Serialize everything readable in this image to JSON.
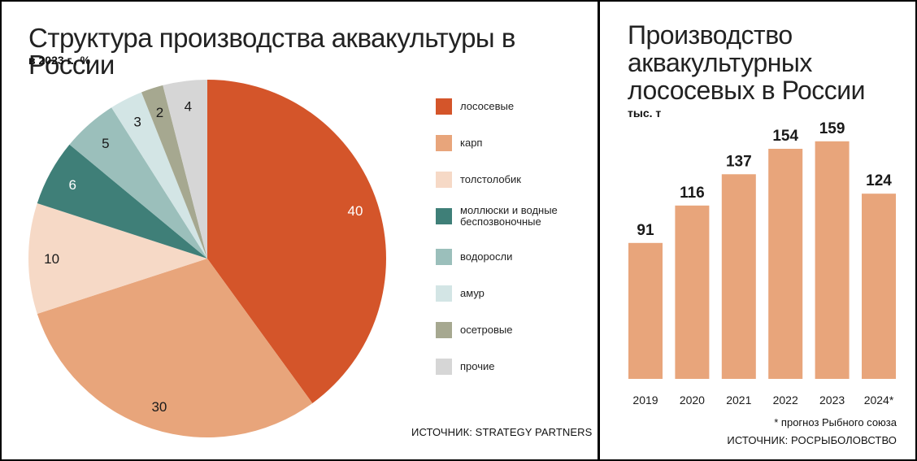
{
  "left_chart": {
    "title": "Структура производства аквакультуры в России",
    "subtitle": "в 2023 г., %",
    "source": "ИСТОЧНИК: STRATEGY PARTNERS"
  },
  "right_chart": {
    "title_lines": [
      "Производство",
      "аквакультурных",
      "лососевых в России"
    ],
    "subtitle": "тыс. т",
    "note": "* прогноз Рыбного союза",
    "source": "ИСТОЧНИК: РОСРЫБОЛОВСТВО"
  },
  "chart_data": [
    {
      "type": "pie",
      "title": "Структура производства аквакультуры в России",
      "subtitle": "в 2023 г., %",
      "labels": [
        "лососевые",
        "карп",
        "толстолобик",
        "моллюски и водные беспозвоночные",
        "водоросли",
        "амур",
        "осетровые",
        "прочие"
      ],
      "values": [
        40,
        30,
        10,
        6,
        5,
        3,
        2,
        4
      ],
      "colors": [
        "#d4552a",
        "#e8a57b",
        "#f6d9c6",
        "#3f7f78",
        "#9bbfbb",
        "#d3e5e5",
        "#a6a890",
        "#d6d6d6"
      ],
      "legend": "right"
    },
    {
      "type": "bar",
      "title": "Производство аквакультурных лососевых в России",
      "subtitle": "тыс. т",
      "categories": [
        "2019",
        "2020",
        "2021",
        "2022",
        "2023",
        "2024*"
      ],
      "values": [
        91,
        116,
        137,
        154,
        159,
        124
      ],
      "color": "#e8a57b",
      "ylim": [
        0,
        160
      ]
    }
  ]
}
